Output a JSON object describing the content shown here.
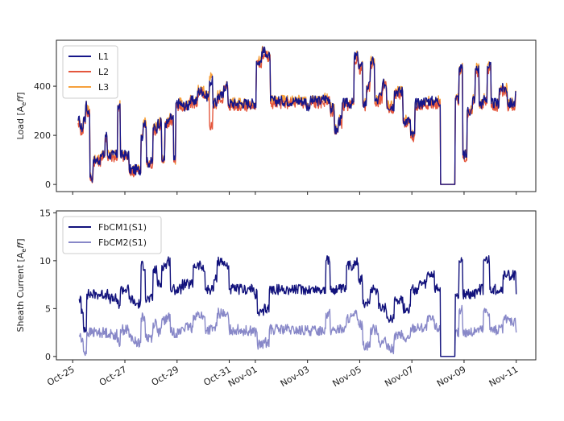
{
  "chart_data": [
    {
      "type": "line",
      "ylabel": "Load [A_eff]",
      "ylabel_parts": {
        "main": "Load [A",
        "sub": "e",
        "it": "ff",
        "end": "]"
      },
      "ylim": [
        -29,
        587
      ],
      "xlim": [
        "10-24 09:00",
        "11-11 18:00"
      ],
      "yticks": [
        0,
        200,
        400
      ],
      "xticks": [
        "10-25",
        "10-27",
        "10-29",
        "10-31",
        "11-01",
        "11-03",
        "11-05",
        "11-07",
        "11-09",
        "11-11"
      ],
      "xtick_labels_shown": false,
      "legend": "top-left",
      "grid": false,
      "x": [
        "10-25 05:00",
        "10-25 07:00",
        "10-25 10:00",
        "10-25 12:00",
        "10-25 13:00",
        "10-25 16:00",
        "10-25 19:00",
        "10-26 02:00",
        "10-26 06:00",
        "10-26 08:00",
        "10-26 13:00",
        "10-26 17:30",
        "10-26 20:00",
        "10-27 04:00",
        "10-27 11:00",
        "10-27 15:00",
        "10-27 17:00",
        "10-27 20:00",
        "10-28 02:00",
        "10-28 06:00",
        "10-28 10:00",
        "10-28 13:00",
        "10-28 17:00",
        "10-28 21:00",
        "10-28 23:00",
        "10-29 04:00",
        "10-29 11:00",
        "10-29 19:00",
        "10-30 01:00",
        "10-30 06:00",
        "10-30 09:00",
        "10-30 13:00",
        "10-30 19:00",
        "10-30 23:00",
        "10-31 12:00",
        "10-31 23:30",
        "11-01 01:00",
        "11-01 06:00",
        "11-01 11:00",
        "11-01 14:00",
        "11-02 00:30",
        "11-02 12:00",
        "11-02 23:00",
        "11-03 02:30",
        "11-03 14:00",
        "11-03 21:00",
        "11-04 01:00",
        "11-04 04:30",
        "11-04 08:00",
        "11-04 12:00",
        "11-04 19:00",
        "11-04 23:00",
        "11-05 03:00",
        "11-05 06:30",
        "11-05 10:00",
        "11-05 14:00",
        "11-05 17:30",
        "11-05 21:00",
        "11-06 01:00",
        "11-06 08:00",
        "11-06 16:00",
        "11-06 23:00",
        "11-07 03:00",
        "11-07 10:00",
        "11-07 21:00",
        "11-08 02:30",
        "11-08 13:30",
        "11-08 16:00",
        "11-08 19:30",
        "11-08 23:00",
        "11-09 03:00",
        "11-09 08:00",
        "11-09 10:30",
        "11-09 14:00",
        "11-09 18:00",
        "11-09 21:30",
        "11-10 01:00",
        "11-10 08:30",
        "11-10 16:00",
        "11-10 23:30"
      ],
      "series": [
        {
          "name": "L1",
          "color": "#16168a",
          "values": [
            260,
            230,
            270,
            320,
            300,
            30,
            100,
            120,
            200,
            120,
            120,
            320,
            120,
            60,
            60,
            200,
            250,
            90,
            230,
            250,
            100,
            250,
            270,
            100,
            330,
            320,
            340,
            380,
            360,
            420,
            330,
            360,
            400,
            330,
            330,
            330,
            500,
            540,
            520,
            340,
            340,
            340,
            320,
            340,
            350,
            310,
            220,
            260,
            330,
            330,
            520,
            480,
            330,
            400,
            500,
            340,
            360,
            410,
            320,
            380,
            260,
            200,
            330,
            340,
            340,
            0,
            0,
            350,
            470,
            120,
            300,
            350,
            470,
            330,
            350,
            480,
            330,
            390,
            330,
            380
          ]
        },
        {
          "name": "L2",
          "color": "#e4573d",
          "values": [
            250,
            220,
            260,
            310,
            290,
            25,
            95,
            112,
            192,
            112,
            112,
            310,
            112,
            52,
            52,
            192,
            240,
            82,
            222,
            240,
            92,
            240,
            260,
            92,
            318,
            310,
            330,
            370,
            350,
            240,
            320,
            350,
            390,
            320,
            318,
            318,
            490,
            528,
            510,
            330,
            330,
            330,
            310,
            330,
            338,
            298,
            210,
            250,
            318,
            318,
            508,
            470,
            318,
            390,
            488,
            328,
            348,
            398,
            310,
            368,
            250,
            190,
            318,
            328,
            328,
            0,
            0,
            338,
            460,
            110,
            290,
            338,
            458,
            318,
            338,
            470,
            318,
            378,
            318,
            368
          ]
        },
        {
          "name": "L3",
          "color": "#f6a03c",
          "values": [
            262,
            232,
            272,
            322,
            302,
            32,
            102,
            122,
            202,
            122,
            122,
            322,
            122,
            62,
            62,
            202,
            252,
            92,
            232,
            252,
            102,
            252,
            272,
            102,
            332,
            322,
            342,
            382,
            362,
            440,
            332,
            362,
            402,
            332,
            332,
            332,
            502,
            542,
            522,
            342,
            342,
            342,
            322,
            342,
            352,
            312,
            222,
            262,
            332,
            332,
            522,
            482,
            332,
            402,
            502,
            342,
            362,
            412,
            322,
            382,
            262,
            202,
            332,
            342,
            342,
            0,
            0,
            352,
            472,
            122,
            302,
            352,
            472,
            332,
            352,
            482,
            332,
            392,
            332,
            382
          ]
        }
      ]
    },
    {
      "type": "line",
      "ylabel": "Sheath Current [A_eff]",
      "ylabel_parts": {
        "main": "Sheath Current [A",
        "sub": "e",
        "it": "ff",
        "end": "]"
      },
      "ylim": [
        -0.35,
        15.2
      ],
      "xlim": [
        "10-24 09:00",
        "11-11 18:00"
      ],
      "yticks": [
        0,
        5,
        10,
        15
      ],
      "xticks": [
        "10-25",
        "10-27",
        "10-29",
        "10-31",
        "11-01",
        "11-03",
        "11-05",
        "11-07",
        "11-09",
        "11-11"
      ],
      "xtick_labels": [
        "Oct-25",
        "Oct-27",
        "Oct-29",
        "Oct-31",
        "Nov-01",
        "Nov-03",
        "Nov-05",
        "Nov-07",
        "Nov-09",
        "Nov-11"
      ],
      "legend": "top-left",
      "grid": false,
      "x": [
        "10-25 06:00",
        "10-25 08:00",
        "10-25 10:00",
        "10-25 13:00",
        "10-25 22:00",
        "10-26 09:00",
        "10-26 17:00",
        "10-26 20:00",
        "10-27 04:00",
        "10-27 08:00",
        "10-27 15:00",
        "10-27 19:00",
        "10-28 02:00",
        "10-28 06:00",
        "10-28 10:00",
        "10-28 15:00",
        "10-28 18:00",
        "10-29 04:00",
        "10-29 15:00",
        "10-29 23:00",
        "10-30 02:00",
        "10-30 10:00",
        "10-30 13:00",
        "10-30 19:00",
        "10-31 00:00",
        "10-31 12:00",
        "10-31 23:30",
        "11-01 02:00",
        "11-01 08:00",
        "11-01 13:00",
        "11-02 08:00",
        "11-02 23:00",
        "11-03 14:00",
        "11-03 17:00",
        "11-03 21:00",
        "11-04 08:00",
        "11-04 12:00",
        "11-04 19:00",
        "11-04 23:00",
        "11-05 03:00",
        "11-05 10:00",
        "11-05 17:30",
        "11-06 01:00",
        "11-06 08:00",
        "11-06 16:00",
        "11-06 23:00",
        "11-07 06:30",
        "11-07 14:00",
        "11-07 21:00",
        "11-08 01:00",
        "11-08 02:30",
        "11-08 13:30",
        "11-08 16:00",
        "11-08 19:30",
        "11-08 23:00",
        "11-09 10:30",
        "11-09 18:00",
        "11-09 23:45",
        "11-10 12:00",
        "11-10 20:00",
        "11-11 00:00"
      ],
      "series": [
        {
          "name": "FbCM1(S1)",
          "color": "#12127c",
          "values": [
            6,
            4.5,
            3,
            6.5,
            6.5,
            6,
            5.5,
            7,
            6,
            5.5,
            9.5,
            6,
            9,
            7.5,
            9.5,
            10,
            7,
            7.5,
            9.5,
            9,
            7,
            8,
            10,
            9.5,
            7,
            7,
            6.5,
            4.5,
            5,
            7,
            7,
            7,
            7,
            10,
            7,
            7,
            9.5,
            10,
            8,
            5.5,
            7,
            5,
            4,
            6,
            5,
            7,
            7.5,
            8.5,
            7,
            7,
            0,
            0,
            6.5,
            10,
            6.5,
            7,
            10,
            7,
            8.5,
            8.5,
            6.5
          ]
        },
        {
          "name": "FbCM2(S1)",
          "color": "#8888c8",
          "values": [
            2.2,
            1.5,
            0.5,
            2.5,
            2.5,
            2.3,
            1.5,
            2.8,
            2,
            1.5,
            4,
            2,
            3.5,
            2.5,
            3.8,
            4.2,
            2.5,
            3,
            4.3,
            4,
            2.8,
            3,
            4.5,
            4.2,
            2.8,
            2.7,
            2.5,
            1.2,
            1.5,
            2.8,
            2.7,
            2.7,
            2.8,
            4.5,
            2.8,
            2.8,
            4,
            4.3,
            3.3,
            1.2,
            2.8,
            1.5,
            0.8,
            2.2,
            1.8,
            3,
            3,
            3.8,
            3,
            2.8,
            0,
            0,
            2.5,
            4.8,
            2.5,
            2.8,
            4.7,
            2.8,
            3.8,
            3.7,
            2.5
          ]
        }
      ]
    }
  ]
}
